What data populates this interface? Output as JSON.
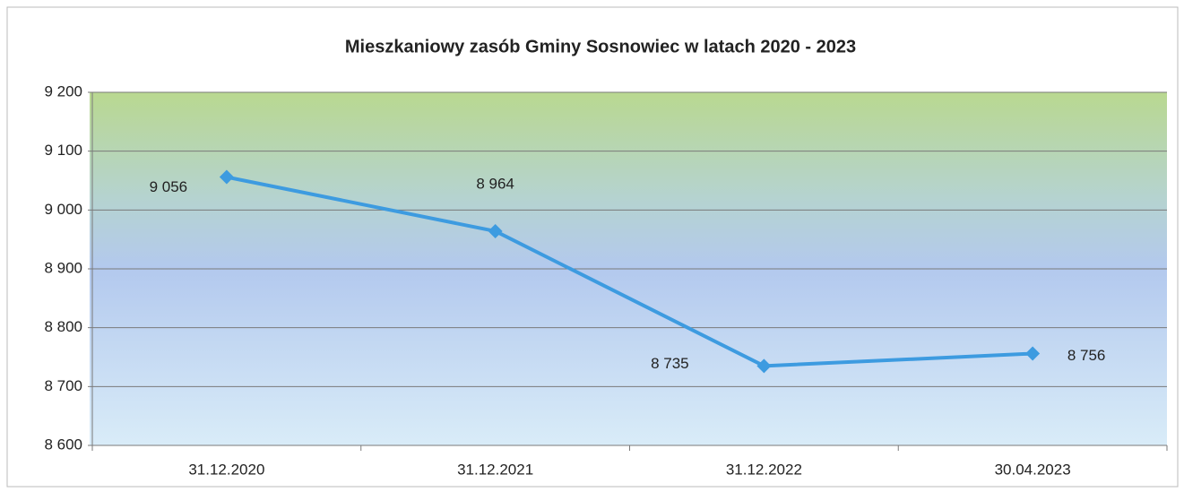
{
  "chart_data": {
    "type": "line",
    "title": "Mieszkaniowy zasób Gminy Sosnowiec w latach 2020 - 2023",
    "categories": [
      "31.12.2020",
      "31.12.2021",
      "31.12.2022",
      "30.04.2023"
    ],
    "series": [
      {
        "name": "Mieszkaniowy zasób",
        "color": "#3d9be0",
        "values": [
          9056,
          8964,
          8735,
          8756
        ],
        "value_labels": [
          "9 056",
          "8 964",
          "8 735",
          "8 756"
        ]
      }
    ],
    "ylim": [
      8600,
      9200
    ],
    "yticks": [
      {
        "value": 8600,
        "label": "8 600"
      },
      {
        "value": 8700,
        "label": "8 700"
      },
      {
        "value": 8800,
        "label": "8 800"
      },
      {
        "value": 8900,
        "label": "8 900"
      },
      {
        "value": 9000,
        "label": "9 000"
      },
      {
        "value": 9100,
        "label": "9 100"
      },
      {
        "value": 9200,
        "label": "9 200"
      }
    ],
    "grid": true
  }
}
